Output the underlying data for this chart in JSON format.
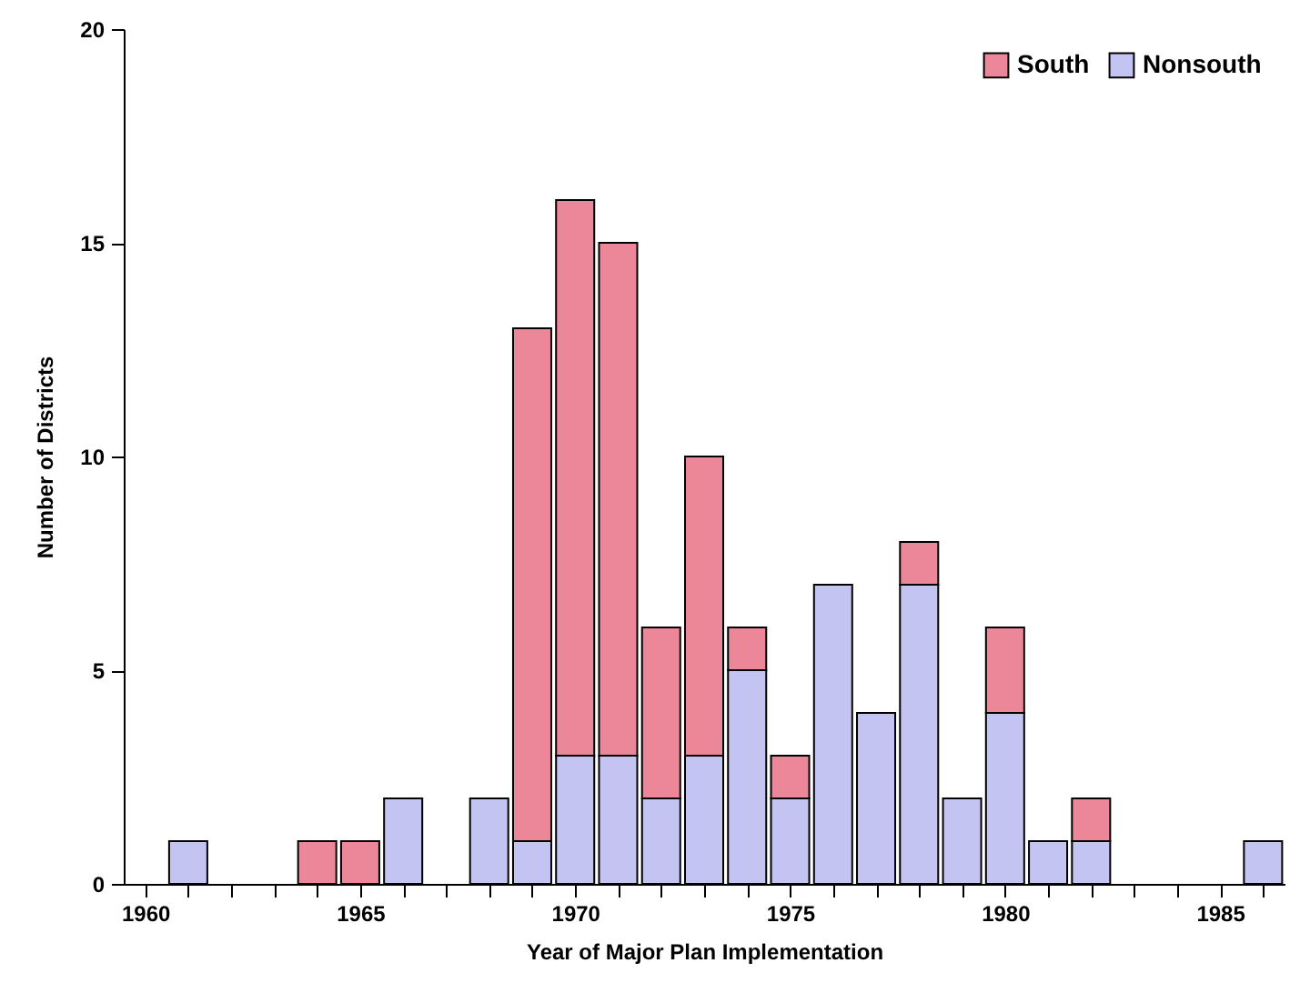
{
  "chart_data": {
    "type": "bar",
    "stacked": true,
    "xlabel": "Year of Major Plan Implementation",
    "ylabel": "Number of Districts",
    "x": [
      1961,
      1964,
      1965,
      1966,
      1968,
      1969,
      1970,
      1971,
      1972,
      1973,
      1974,
      1975,
      1976,
      1977,
      1978,
      1979,
      1980,
      1981,
      1982,
      1986
    ],
    "series": [
      {
        "name": "Nonsouth",
        "color": "#c4c4f2",
        "values": [
          1,
          null,
          null,
          2,
          2,
          1,
          3,
          3,
          2,
          3,
          5,
          2,
          7,
          4,
          7,
          2,
          4,
          1,
          1,
          1
        ]
      },
      {
        "name": "South",
        "color": "#ec8799",
        "values": [
          null,
          1,
          1,
          null,
          null,
          12,
          13,
          12,
          4,
          7,
          1,
          1,
          null,
          null,
          1,
          null,
          2,
          null,
          1,
          null
        ]
      }
    ],
    "xlim": [
      1959.5,
      1986.5
    ],
    "xticks": [
      1960,
      {
        "value": 1961,
        "label": null
      },
      {
        "value": 1962,
        "label": null
      },
      {
        "value": 1963,
        "label": null
      },
      {
        "value": 1964,
        "label": null
      },
      1965,
      {
        "value": 1966,
        "label": null
      },
      {
        "value": 1967,
        "label": null
      },
      {
        "value": 1968,
        "label": null
      },
      {
        "value": 1969,
        "label": null
      },
      1970,
      {
        "value": 1971,
        "label": null
      },
      {
        "value": 1972,
        "label": null
      },
      {
        "value": 1973,
        "label": null
      },
      {
        "value": 1974,
        "label": null
      },
      1975,
      {
        "value": 1976,
        "label": null
      },
      {
        "value": 1977,
        "label": null
      },
      {
        "value": 1978,
        "label": null
      },
      {
        "value": 1979,
        "label": null
      },
      1980,
      {
        "value": 1981,
        "label": null
      },
      {
        "value": 1982,
        "label": null
      },
      {
        "value": 1983,
        "label": null
      },
      {
        "value": 1984,
        "label": null
      },
      1985,
      {
        "value": 1986,
        "label": null
      }
    ],
    "ylim": [
      0,
      20
    ],
    "yticks": [
      0,
      5,
      10,
      15,
      20
    ],
    "grid": false,
    "legend": "top right"
  }
}
